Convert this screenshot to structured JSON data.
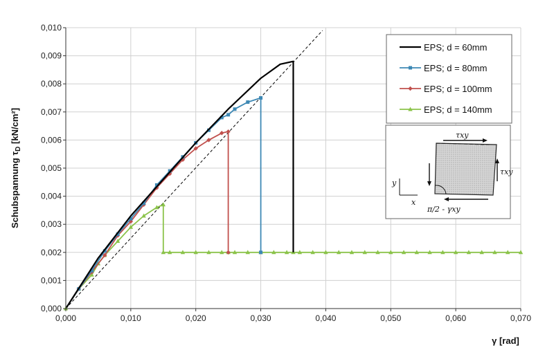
{
  "chart_data": {
    "type": "line",
    "title": "",
    "xlabel": "γ [rad]",
    "ylabel_main": "Schubspannung τ",
    "ylabel_sub": "D",
    "ylabel_unit": " [kN/cm²]",
    "xlim": [
      0,
      0.07
    ],
    "ylim": [
      0,
      0.01
    ],
    "x_ticks": [
      "0,000",
      "0,010",
      "0,020",
      "0,030",
      "0,040",
      "0,050",
      "0,060",
      "0,070"
    ],
    "y_ticks": [
      "0,000",
      "0,001",
      "0,002",
      "0,003",
      "0,004",
      "0,005",
      "0,006",
      "0,007",
      "0,008",
      "0,009",
      "0,010"
    ],
    "grid": true,
    "legend_position": "top-right",
    "reference_line": {
      "style": "dashed",
      "color": "#000000",
      "points": [
        [
          0,
          0
        ],
        [
          0.0395,
          0.0099
        ]
      ]
    },
    "series": [
      {
        "name": "EPS; d = 60mm",
        "color": "#000000",
        "marker": "none",
        "points": [
          [
            0,
            0
          ],
          [
            0.005,
            0.0018
          ],
          [
            0.01,
            0.0033
          ],
          [
            0.015,
            0.0046
          ],
          [
            0.02,
            0.0059
          ],
          [
            0.025,
            0.0071
          ],
          [
            0.03,
            0.0082
          ],
          [
            0.033,
            0.0087
          ],
          [
            0.035,
            0.0088
          ],
          [
            0.035,
            0.002
          ]
        ]
      },
      {
        "name": "EPS; d = 80mm",
        "color": "#3d88b4",
        "marker": "square",
        "points": [
          [
            0,
            0
          ],
          [
            0.002,
            0.0007
          ],
          [
            0.004,
            0.00135
          ],
          [
            0.006,
            0.00205
          ],
          [
            0.008,
            0.00265
          ],
          [
            0.01,
            0.0032
          ],
          [
            0.012,
            0.00375
          ],
          [
            0.014,
            0.0044
          ],
          [
            0.016,
            0.0049
          ],
          [
            0.018,
            0.0054
          ],
          [
            0.02,
            0.0059
          ],
          [
            0.022,
            0.00635
          ],
          [
            0.024,
            0.0068
          ],
          [
            0.025,
            0.0069
          ],
          [
            0.026,
            0.0071
          ],
          [
            0.028,
            0.00735
          ],
          [
            0.03,
            0.0075
          ],
          [
            0.03,
            0.002
          ]
        ]
      },
      {
        "name": "EPS; d = 100mm",
        "color": "#c0504d",
        "marker": "diamond",
        "points": [
          [
            0,
            0
          ],
          [
            0.002,
            0.0007
          ],
          [
            0.004,
            0.0013
          ],
          [
            0.006,
            0.0019
          ],
          [
            0.008,
            0.0026
          ],
          [
            0.01,
            0.0031
          ],
          [
            0.012,
            0.0037
          ],
          [
            0.014,
            0.0043
          ],
          [
            0.016,
            0.0048
          ],
          [
            0.018,
            0.0053
          ],
          [
            0.02,
            0.0057
          ],
          [
            0.022,
            0.006
          ],
          [
            0.024,
            0.00625
          ],
          [
            0.025,
            0.0063
          ],
          [
            0.025,
            0.002
          ]
        ]
      },
      {
        "name": "EPS; d = 140mm",
        "color": "#8bc34a",
        "marker": "triangle",
        "points": [
          [
            0,
            0
          ],
          [
            0.002,
            0.0007
          ],
          [
            0.004,
            0.0012
          ],
          [
            0.005,
            0.0016
          ],
          [
            0.006,
            0.0019
          ],
          [
            0.008,
            0.0024
          ],
          [
            0.01,
            0.0029
          ],
          [
            0.012,
            0.0033
          ],
          [
            0.014,
            0.0036
          ],
          [
            0.015,
            0.0037
          ],
          [
            0.015,
            0.002
          ],
          [
            0.016,
            0.002
          ],
          [
            0.018,
            0.002
          ],
          [
            0.02,
            0.002
          ],
          [
            0.022,
            0.002
          ],
          [
            0.024,
            0.002
          ],
          [
            0.025,
            0.002
          ],
          [
            0.026,
            0.002
          ],
          [
            0.028,
            0.002
          ],
          [
            0.03,
            0.002
          ],
          [
            0.032,
            0.002
          ],
          [
            0.034,
            0.002
          ],
          [
            0.035,
            0.002
          ],
          [
            0.036,
            0.002
          ],
          [
            0.038,
            0.002
          ],
          [
            0.04,
            0.002
          ],
          [
            0.042,
            0.002
          ],
          [
            0.044,
            0.002
          ],
          [
            0.046,
            0.002
          ],
          [
            0.048,
            0.002
          ],
          [
            0.05,
            0.002
          ],
          [
            0.052,
            0.002
          ],
          [
            0.054,
            0.002
          ],
          [
            0.056,
            0.002
          ],
          [
            0.058,
            0.002
          ],
          [
            0.06,
            0.002
          ],
          [
            0.062,
            0.002
          ],
          [
            0.064,
            0.002
          ],
          [
            0.066,
            0.002
          ],
          [
            0.068,
            0.002
          ],
          [
            0.07,
            0.002
          ]
        ]
      }
    ],
    "inset": {
      "labels": {
        "tau_top": "τxy",
        "tau_right": "τxy",
        "axis_y": "y",
        "axis_x": "x",
        "angle": "π/2 - γxy"
      }
    }
  }
}
